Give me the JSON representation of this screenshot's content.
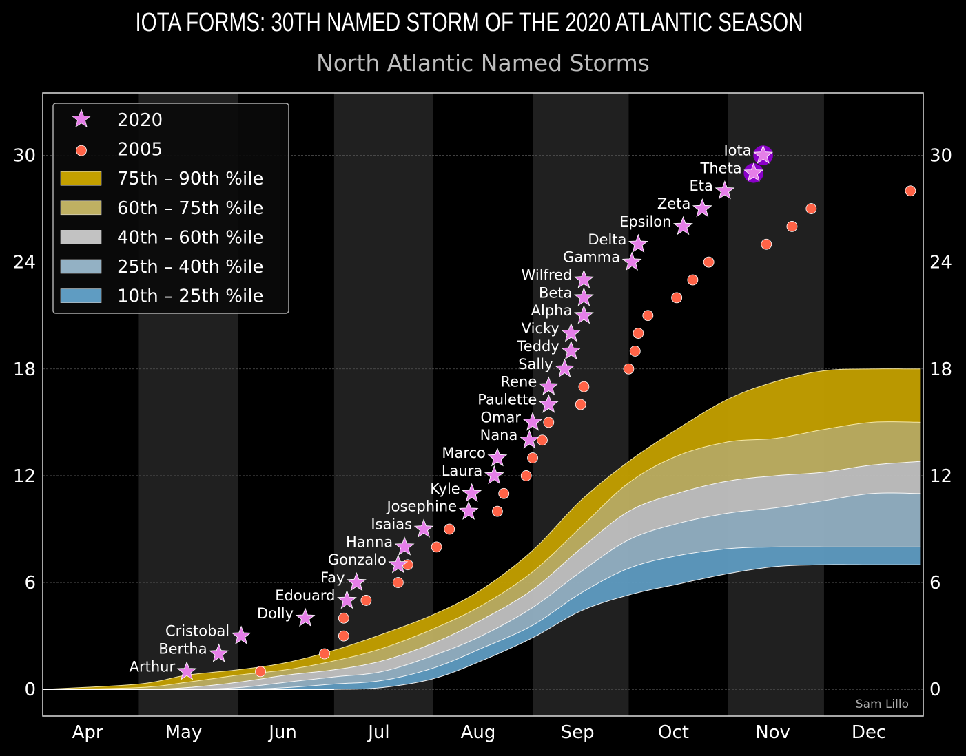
{
  "chart_data": {
    "type": "scatter",
    "title": "IOTA FORMS: 30TH NAMED STORM OF THE 2020 ATLANTIC SEASON",
    "subtitle": "North Atlantic Named Storms",
    "credit": "Sam Lillo",
    "xlim": [
      "04-01",
      "12-31"
    ],
    "ylim": [
      -1.5,
      33.5
    ],
    "grid": true,
    "legend_placement": "upper-left",
    "x_ticks": [
      {
        "label": "Apr",
        "date": "04-15"
      },
      {
        "label": "May",
        "date": "05-15"
      },
      {
        "label": "Jun",
        "date": "06-15"
      },
      {
        "label": "Jul",
        "date": "07-15"
      },
      {
        "label": "Aug",
        "date": "08-15"
      },
      {
        "label": "Sep",
        "date": "09-15"
      },
      {
        "label": "Oct",
        "date": "10-15"
      },
      {
        "label": "Nov",
        "date": "11-15"
      },
      {
        "label": "Dec",
        "date": "12-15"
      }
    ],
    "y_ticks": [
      0,
      6,
      12,
      18,
      24,
      30
    ],
    "shaded_months": [
      "05",
      "07",
      "09",
      "11"
    ],
    "legend": [
      {
        "label": "2020",
        "kind": "star",
        "color": "#e57ee8"
      },
      {
        "label": "2005",
        "kind": "dot",
        "color": "#ff6347"
      },
      {
        "label": "75th – 90th %ile",
        "kind": "band",
        "color": "#c4a000"
      },
      {
        "label": "60th – 75th %ile",
        "kind": "band",
        "color": "#bfb062"
      },
      {
        "label": "40th – 60th %ile",
        "kind": "band",
        "color": "#c2c2c2"
      },
      {
        "label": "25th – 40th %ile",
        "kind": "band",
        "color": "#93b1c4"
      },
      {
        "label": "10th – 25th %ile",
        "kind": "band",
        "color": "#5f9cc2"
      }
    ],
    "percentiles": {
      "dates": [
        "04-01",
        "05-01",
        "05-16",
        "06-01",
        "06-16",
        "07-01",
        "07-16",
        "08-01",
        "08-16",
        "09-01",
        "09-16",
        "10-01",
        "10-16",
        "11-01",
        "11-16",
        "12-01",
        "12-16",
        "12-31"
      ],
      "p90": [
        0,
        0.3,
        0.8,
        1.1,
        1.5,
        2.2,
        3.1,
        4.2,
        5.6,
        7.8,
        10.6,
        12.8,
        14.6,
        16.3,
        17.3,
        17.9,
        18.0,
        18.0
      ],
      "p75": [
        0,
        0.1,
        0.4,
        0.8,
        1.1,
        1.6,
        2.3,
        3.4,
        4.7,
        6.6,
        9.1,
        11.6,
        13.1,
        13.9,
        14.1,
        14.6,
        15.0,
        15.0
      ],
      "p60": [
        0,
        0,
        0.1,
        0.4,
        0.8,
        1.1,
        1.6,
        2.6,
        3.9,
        5.6,
        7.9,
        10.0,
        11.0,
        11.7,
        12.0,
        12.2,
        12.6,
        12.8
      ],
      "p40": [
        0,
        0,
        0,
        0.1,
        0.4,
        0.7,
        1.0,
        1.9,
        3.0,
        4.6,
        6.6,
        8.4,
        9.3,
        9.9,
        10.2,
        10.6,
        11.0,
        11.0
      ],
      "p25": [
        0,
        0,
        0,
        0,
        0.1,
        0.3,
        0.5,
        1.2,
        2.3,
        3.6,
        5.4,
        6.8,
        7.5,
        7.9,
        8.0,
        8.0,
        8.0,
        8.0
      ],
      "p10": [
        0,
        0,
        0,
        0,
        0,
        0,
        0.1,
        0.6,
        1.6,
        2.9,
        4.4,
        5.3,
        5.9,
        6.5,
        6.9,
        7.0,
        7.0,
        7.0
      ]
    },
    "series": [
      {
        "name": "2020",
        "points": [
          {
            "date": "05-16",
            "count": 1,
            "label": "Arthur"
          },
          {
            "date": "05-26",
            "count": 2,
            "label": "Bertha"
          },
          {
            "date": "06-02",
            "count": 3,
            "label": "Cristobal"
          },
          {
            "date": "06-22",
            "count": 4,
            "label": "Dolly"
          },
          {
            "date": "07-05",
            "count": 5,
            "label": "Edouard"
          },
          {
            "date": "07-08",
            "count": 6,
            "label": "Fay"
          },
          {
            "date": "07-21",
            "count": 7,
            "label": "Gonzalo"
          },
          {
            "date": "07-23",
            "count": 8,
            "label": "Hanna"
          },
          {
            "date": "07-29",
            "count": 9,
            "label": "Isaias"
          },
          {
            "date": "08-12",
            "count": 10,
            "label": "Josephine"
          },
          {
            "date": "08-13",
            "count": 11,
            "label": "Kyle"
          },
          {
            "date": "08-20",
            "count": 12,
            "label": "Laura"
          },
          {
            "date": "08-21",
            "count": 13,
            "label": "Marco"
          },
          {
            "date": "08-31",
            "count": 14,
            "label": "Nana"
          },
          {
            "date": "09-01",
            "count": 15,
            "label": "Omar"
          },
          {
            "date": "09-06",
            "count": 16,
            "label": "Paulette"
          },
          {
            "date": "09-06",
            "count": 17,
            "label": "Rene"
          },
          {
            "date": "09-11",
            "count": 18,
            "label": "Sally"
          },
          {
            "date": "09-13",
            "count": 19,
            "label": "Teddy"
          },
          {
            "date": "09-13",
            "count": 20,
            "label": "Vicky"
          },
          {
            "date": "09-17",
            "count": 21,
            "label": "Alpha"
          },
          {
            "date": "09-17",
            "count": 22,
            "label": "Beta"
          },
          {
            "date": "09-17",
            "count": 23,
            "label": "Wilfred"
          },
          {
            "date": "10-02",
            "count": 24,
            "label": "Gamma"
          },
          {
            "date": "10-04",
            "count": 25,
            "label": "Delta"
          },
          {
            "date": "10-18",
            "count": 26,
            "label": "Epsilon"
          },
          {
            "date": "10-24",
            "count": 27,
            "label": "Zeta"
          },
          {
            "date": "10-31",
            "count": 28,
            "label": "Eta"
          },
          {
            "date": "11-09",
            "count": 29,
            "label": "Theta",
            "highlight": true
          },
          {
            "date": "11-12",
            "count": 30,
            "label": "Iota",
            "highlight": true
          }
        ]
      },
      {
        "name": "2005",
        "points": [
          {
            "date": "06-08",
            "count": 1
          },
          {
            "date": "06-28",
            "count": 2
          },
          {
            "date": "07-04",
            "count": 3
          },
          {
            "date": "07-04",
            "count": 4
          },
          {
            "date": "07-11",
            "count": 5
          },
          {
            "date": "07-21",
            "count": 6
          },
          {
            "date": "07-24",
            "count": 7
          },
          {
            "date": "08-02",
            "count": 8
          },
          {
            "date": "08-06",
            "count": 9
          },
          {
            "date": "08-21",
            "count": 10
          },
          {
            "date": "08-23",
            "count": 11
          },
          {
            "date": "08-30",
            "count": 12
          },
          {
            "date": "09-01",
            "count": 13
          },
          {
            "date": "09-04",
            "count": 14
          },
          {
            "date": "09-06",
            "count": 15
          },
          {
            "date": "09-16",
            "count": 16
          },
          {
            "date": "09-17",
            "count": 17
          },
          {
            "date": "10-01",
            "count": 18
          },
          {
            "date": "10-03",
            "count": 19
          },
          {
            "date": "10-04",
            "count": 20
          },
          {
            "date": "10-07",
            "count": 21
          },
          {
            "date": "10-16",
            "count": 22
          },
          {
            "date": "10-21",
            "count": 23
          },
          {
            "date": "10-26",
            "count": 24
          },
          {
            "date": "11-13",
            "count": 25
          },
          {
            "date": "11-21",
            "count": 26
          },
          {
            "date": "11-27",
            "count": 27
          },
          {
            "date": "12-28",
            "count": 28
          }
        ]
      }
    ],
    "highlight_color": "#8a00c8"
  }
}
